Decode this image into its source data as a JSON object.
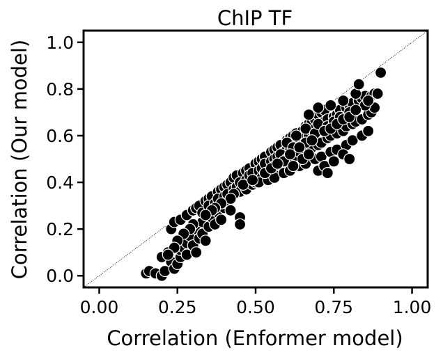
{
  "chart_data": {
    "type": "scatter",
    "title": "ChIP TF",
    "xlabel": "Correlation (Enformer model)",
    "ylabel": "Correlation (Our model)",
    "xlim": [
      -0.05,
      1.05
    ],
    "ylim": [
      -0.05,
      1.05
    ],
    "xticks": [
      "0.00",
      "0.25",
      "0.50",
      "0.75",
      "1.00"
    ],
    "yticks": [
      "0.0",
      "0.2",
      "0.4",
      "0.6",
      "0.8",
      "1.0"
    ],
    "xtick_values": [
      0.0,
      0.25,
      0.5,
      0.75,
      1.0
    ],
    "ytick_values": [
      0.0,
      0.2,
      0.4,
      0.6,
      0.8,
      1.0
    ],
    "grid": false,
    "legend": "none",
    "reference_line": {
      "label": "",
      "points": [
        [
          -0.05,
          -0.05
        ],
        [
          1.05,
          1.05
        ]
      ],
      "style": "dotted"
    },
    "colors": {
      "marker_fill": "#000000",
      "marker_edge": "#ffffff",
      "axes": "#000000"
    },
    "series": [
      {
        "name": "",
        "points": [
          [
            0.15,
            0.01
          ],
          [
            0.16,
            0.02
          ],
          [
            0.18,
            0.01
          ],
          [
            0.2,
            0.0
          ],
          [
            0.21,
            0.02
          ],
          [
            0.2,
            0.08
          ],
          [
            0.22,
            0.1
          ],
          [
            0.23,
            0.06
          ],
          [
            0.24,
            0.03
          ],
          [
            0.25,
            0.05
          ],
          [
            0.26,
            0.08
          ],
          [
            0.26,
            0.11
          ],
          [
            0.27,
            0.12
          ],
          [
            0.28,
            0.09
          ],
          [
            0.28,
            0.14
          ],
          [
            0.29,
            0.17
          ],
          [
            0.3,
            0.13
          ],
          [
            0.31,
            0.1
          ],
          [
            0.31,
            0.2
          ],
          [
            0.32,
            0.16
          ],
          [
            0.33,
            0.18
          ],
          [
            0.33,
            0.23
          ],
          [
            0.34,
            0.15
          ],
          [
            0.35,
            0.21
          ],
          [
            0.36,
            0.25
          ],
          [
            0.37,
            0.22
          ],
          [
            0.38,
            0.27
          ],
          [
            0.39,
            0.24
          ],
          [
            0.4,
            0.29
          ],
          [
            0.41,
            0.31
          ],
          [
            0.42,
            0.28
          ],
          [
            0.45,
            0.25
          ],
          [
            0.45,
            0.22
          ],
          [
            0.23,
            0.2
          ],
          [
            0.24,
            0.23
          ],
          [
            0.26,
            0.24
          ],
          [
            0.28,
            0.26
          ],
          [
            0.3,
            0.28
          ],
          [
            0.31,
            0.29
          ],
          [
            0.32,
            0.3
          ],
          [
            0.34,
            0.32
          ],
          [
            0.35,
            0.33
          ],
          [
            0.36,
            0.34
          ],
          [
            0.38,
            0.36
          ],
          [
            0.39,
            0.37
          ],
          [
            0.4,
            0.38
          ],
          [
            0.41,
            0.39
          ],
          [
            0.42,
            0.4
          ],
          [
            0.43,
            0.42
          ],
          [
            0.44,
            0.43
          ],
          [
            0.46,
            0.44
          ],
          [
            0.47,
            0.45
          ],
          [
            0.48,
            0.46
          ],
          [
            0.5,
            0.48
          ],
          [
            0.51,
            0.49
          ],
          [
            0.52,
            0.5
          ],
          [
            0.53,
            0.51
          ],
          [
            0.55,
            0.53
          ],
          [
            0.56,
            0.54
          ],
          [
            0.57,
            0.55
          ],
          [
            0.58,
            0.56
          ],
          [
            0.6,
            0.58
          ],
          [
            0.61,
            0.59
          ],
          [
            0.62,
            0.6
          ],
          [
            0.63,
            0.61
          ],
          [
            0.65,
            0.62
          ],
          [
            0.66,
            0.64
          ],
          [
            0.67,
            0.65
          ],
          [
            0.68,
            0.66
          ],
          [
            0.69,
            0.67
          ],
          [
            0.7,
            0.69
          ],
          [
            0.71,
            0.7
          ],
          [
            0.72,
            0.71
          ],
          [
            0.33,
            0.27
          ],
          [
            0.35,
            0.3
          ],
          [
            0.37,
            0.31
          ],
          [
            0.38,
            0.33
          ],
          [
            0.4,
            0.34
          ],
          [
            0.41,
            0.35
          ],
          [
            0.43,
            0.37
          ],
          [
            0.44,
            0.38
          ],
          [
            0.45,
            0.4
          ],
          [
            0.47,
            0.41
          ],
          [
            0.48,
            0.43
          ],
          [
            0.49,
            0.44
          ],
          [
            0.51,
            0.45
          ],
          [
            0.52,
            0.46
          ],
          [
            0.53,
            0.48
          ],
          [
            0.55,
            0.49
          ],
          [
            0.56,
            0.5
          ],
          [
            0.57,
            0.51
          ],
          [
            0.59,
            0.53
          ],
          [
            0.6,
            0.54
          ],
          [
            0.61,
            0.55
          ],
          [
            0.63,
            0.57
          ],
          [
            0.64,
            0.58
          ],
          [
            0.65,
            0.59
          ],
          [
            0.67,
            0.6
          ],
          [
            0.68,
            0.62
          ],
          [
            0.69,
            0.63
          ],
          [
            0.71,
            0.64
          ],
          [
            0.72,
            0.66
          ],
          [
            0.73,
            0.67
          ],
          [
            0.75,
            0.68
          ],
          [
            0.76,
            0.69
          ],
          [
            0.77,
            0.71
          ],
          [
            0.79,
            0.72
          ],
          [
            0.8,
            0.73
          ],
          [
            0.81,
            0.74
          ],
          [
            0.83,
            0.75
          ],
          [
            0.84,
            0.76
          ],
          [
            0.85,
            0.77
          ],
          [
            0.87,
            0.77
          ],
          [
            0.88,
            0.78
          ],
          [
            0.89,
            0.78
          ],
          [
            0.45,
            0.36
          ],
          [
            0.47,
            0.37
          ],
          [
            0.49,
            0.39
          ],
          [
            0.5,
            0.4
          ],
          [
            0.52,
            0.42
          ],
          [
            0.54,
            0.43
          ],
          [
            0.55,
            0.44
          ],
          [
            0.57,
            0.46
          ],
          [
            0.58,
            0.47
          ],
          [
            0.6,
            0.48
          ],
          [
            0.62,
            0.5
          ],
          [
            0.63,
            0.51
          ],
          [
            0.65,
            0.52
          ],
          [
            0.66,
            0.53
          ],
          [
            0.68,
            0.55
          ],
          [
            0.7,
            0.56
          ],
          [
            0.71,
            0.57
          ],
          [
            0.73,
            0.59
          ],
          [
            0.74,
            0.6
          ],
          [
            0.76,
            0.61
          ],
          [
            0.78,
            0.62
          ],
          [
            0.79,
            0.64
          ],
          [
            0.81,
            0.65
          ],
          [
            0.82,
            0.66
          ],
          [
            0.84,
            0.67
          ],
          [
            0.86,
            0.69
          ],
          [
            0.87,
            0.7
          ],
          [
            0.88,
            0.72
          ],
          [
            0.51,
            0.4
          ],
          [
            0.54,
            0.41
          ],
          [
            0.56,
            0.42
          ],
          [
            0.59,
            0.44
          ],
          [
            0.61,
            0.45
          ],
          [
            0.64,
            0.47
          ],
          [
            0.66,
            0.48
          ],
          [
            0.69,
            0.5
          ],
          [
            0.71,
            0.51
          ],
          [
            0.74,
            0.53
          ],
          [
            0.76,
            0.54
          ],
          [
            0.79,
            0.56
          ],
          [
            0.81,
            0.58
          ],
          [
            0.84,
            0.6
          ],
          [
            0.86,
            0.62
          ],
          [
            0.6,
            0.57
          ],
          [
            0.63,
            0.6
          ],
          [
            0.66,
            0.63
          ],
          [
            0.69,
            0.61
          ],
          [
            0.7,
            0.65
          ],
          [
            0.73,
            0.64
          ],
          [
            0.75,
            0.66
          ],
          [
            0.77,
            0.68
          ],
          [
            0.8,
            0.7
          ],
          [
            0.78,
            0.75
          ],
          [
            0.82,
            0.78
          ],
          [
            0.83,
            0.82
          ],
          [
            0.85,
            0.73
          ],
          [
            0.86,
            0.75
          ],
          [
            0.9,
            0.87
          ],
          [
            0.74,
            0.73
          ],
          [
            0.7,
            0.72
          ],
          [
            0.67,
            0.69
          ],
          [
            0.58,
            0.52
          ],
          [
            0.6,
            0.5
          ],
          [
            0.62,
            0.55
          ],
          [
            0.64,
            0.53
          ],
          [
            0.66,
            0.57
          ],
          [
            0.68,
            0.58
          ],
          [
            0.72,
            0.62
          ],
          [
            0.74,
            0.63
          ],
          [
            0.76,
            0.65
          ],
          [
            0.78,
            0.67
          ],
          [
            0.8,
            0.68
          ],
          [
            0.82,
            0.71
          ],
          [
            0.7,
            0.45
          ],
          [
            0.72,
            0.47
          ],
          [
            0.75,
            0.49
          ],
          [
            0.78,
            0.52
          ],
          [
            0.8,
            0.5
          ],
          [
            0.73,
            0.44
          ],
          [
            0.56,
            0.47
          ],
          [
            0.59,
            0.49
          ],
          [
            0.62,
            0.47
          ],
          [
            0.65,
            0.5
          ],
          [
            0.67,
            0.52
          ],
          [
            0.53,
            0.44
          ],
          [
            0.46,
            0.39
          ],
          [
            0.49,
            0.41
          ],
          [
            0.55,
            0.46
          ],
          [
            0.57,
            0.48
          ],
          [
            0.61,
            0.52
          ],
          [
            0.64,
            0.55
          ],
          [
            0.43,
            0.35
          ],
          [
            0.42,
            0.33
          ],
          [
            0.39,
            0.31
          ],
          [
            0.37,
            0.29
          ],
          [
            0.36,
            0.28
          ],
          [
            0.34,
            0.26
          ],
          [
            0.3,
            0.22
          ],
          [
            0.29,
            0.2
          ],
          [
            0.27,
            0.18
          ],
          [
            0.25,
            0.15
          ],
          [
            0.24,
            0.12
          ],
          [
            0.22,
            0.09
          ]
        ]
      }
    ]
  }
}
